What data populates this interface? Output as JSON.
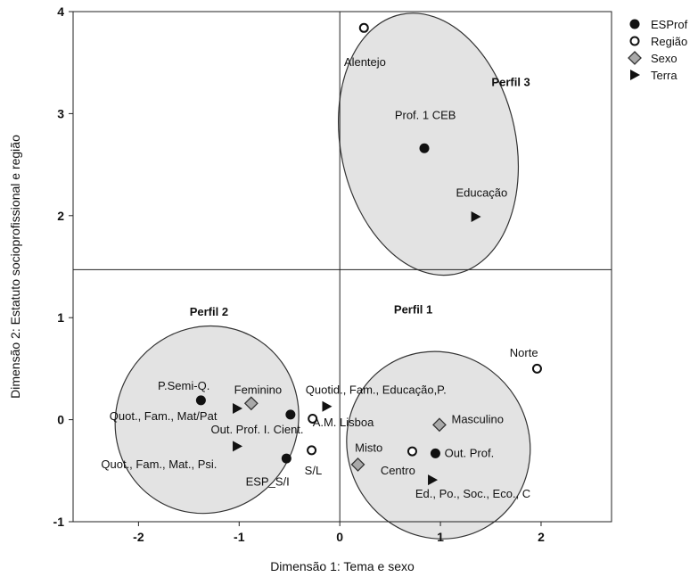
{
  "chart_data": {
    "type": "scatter",
    "xlabel": "Dimensão 1: Tema e sexo",
    "ylabel": "Dimensão 2: Estatuto socioprofissional e região",
    "xlim": [
      -2.65,
      2.7
    ],
    "ylim": [
      -1,
      4
    ],
    "x_ticks": [
      "-2",
      "-1",
      "0",
      "1",
      "2"
    ],
    "y_ticks": [
      "-1",
      "0",
      "1",
      "2",
      "3",
      "4"
    ],
    "x_tick_values": [
      -2,
      -1,
      0,
      1,
      2
    ],
    "y_tick_values": [
      -1,
      0,
      1,
      2,
      3,
      4
    ],
    "reference_lines": {
      "x": 0,
      "y": 1.47
    },
    "legend": {
      "placement": "top-right",
      "entries": [
        {
          "label": "ESProf",
          "marker": "filled-circle"
        },
        {
          "label": "Região",
          "marker": "open-circle"
        },
        {
          "label": "Sexo",
          "marker": "diamond"
        },
        {
          "label": "Terra",
          "marker": "triangle"
        }
      ]
    },
    "profiles": [
      {
        "label": "Perfil 3",
        "cx": 0.88,
        "cy": 2.7,
        "rx": 0.87,
        "ry": 1.3,
        "label_x": 1.7,
        "label_y": 3.27
      },
      {
        "label": "Perfil 2",
        "cx": -1.32,
        "cy": 0.0,
        "rx": 0.9,
        "ry": 0.93,
        "label_x": -1.3,
        "label_y": 1.02
      },
      {
        "label": "Perfil 1",
        "cx": 0.98,
        "cy": -0.25,
        "rx": 0.9,
        "ry": 0.93,
        "label_x": 0.73,
        "label_y": 1.04
      }
    ],
    "series": [
      {
        "name": "ESProf",
        "marker": "filled-circle",
        "points": [
          {
            "label": "Prof. 1 CEB",
            "x": 0.84,
            "y": 2.66,
            "label_x": 0.85,
            "label_y": 2.98,
            "anchor": "middle"
          },
          {
            "label": "P.Semi-Q.",
            "x": -1.38,
            "y": 0.19,
            "label_x": -1.55,
            "label_y": 0.33,
            "anchor": "middle"
          },
          {
            "label": "Out. Prof. I. Cient.",
            "x": -0.49,
            "y": 0.05,
            "label_x": -0.36,
            "label_y": -0.1,
            "anchor": "end"
          },
          {
            "label": "ESP_S/I",
            "x": -0.53,
            "y": -0.38,
            "label_x": -0.5,
            "label_y": -0.61,
            "anchor": "end"
          },
          {
            "label": "Out. Prof.",
            "x": 0.95,
            "y": -0.33,
            "label_x": 1.04,
            "label_y": -0.33,
            "anchor": "start"
          }
        ]
      },
      {
        "name": "Região",
        "marker": "open-circle",
        "points": [
          {
            "label": "Alentejo",
            "x": 0.24,
            "y": 3.84,
            "label_x": 0.25,
            "label_y": 3.5,
            "anchor": "middle"
          },
          {
            "label": "Norte",
            "x": 1.96,
            "y": 0.5,
            "label_x": 1.97,
            "label_y": 0.65,
            "anchor": "end"
          },
          {
            "label": "A.M. Lisboa",
            "x": -0.27,
            "y": 0.01,
            "label_x": -0.27,
            "label_y": -0.03,
            "anchor": "start"
          },
          {
            "label": "S/L",
            "x": -0.28,
            "y": -0.3,
            "label_x": -0.35,
            "label_y": -0.5,
            "anchor": "start"
          },
          {
            "label": "Centro",
            "x": 0.72,
            "y": -0.31,
            "label_x": 0.75,
            "label_y": -0.5,
            "anchor": "end"
          }
        ]
      },
      {
        "name": "Sexo",
        "marker": "diamond",
        "points": [
          {
            "label": "Feminino",
            "x": -0.88,
            "y": 0.16,
            "label_x": -1.05,
            "label_y": 0.29,
            "anchor": "start"
          },
          {
            "label": "Masculino",
            "x": 0.99,
            "y": -0.05,
            "label_x": 1.11,
            "label_y": 0.0,
            "anchor": "start"
          },
          {
            "label": "Misto",
            "x": 0.18,
            "y": -0.44,
            "label_x": 0.15,
            "label_y": -0.28,
            "anchor": "start"
          }
        ]
      },
      {
        "name": "Terra",
        "marker": "triangle",
        "points": [
          {
            "label": "Educação",
            "x": 1.35,
            "y": 1.99,
            "label_x": 1.41,
            "label_y": 2.22,
            "anchor": "middle"
          },
          {
            "label": "Quotid., Fam., Educação,P.",
            "x": -0.13,
            "y": 0.13,
            "label_x": -0.34,
            "label_y": 0.29,
            "anchor": "start"
          },
          {
            "label": "Quot., Fam., Mat/Pat",
            "x": -1.02,
            "y": 0.11,
            "label_x": -1.22,
            "label_y": 0.03,
            "anchor": "end"
          },
          {
            "label": "Quot., Fam., Mat., Psi.",
            "x": -1.02,
            "y": -0.26,
            "label_x": -1.22,
            "label_y": -0.44,
            "anchor": "end"
          },
          {
            "label": "Ed., Po., Soc., Eco., C",
            "x": 0.92,
            "y": -0.59,
            "label_x": 0.75,
            "label_y": -0.73,
            "anchor": "start"
          }
        ]
      }
    ]
  }
}
